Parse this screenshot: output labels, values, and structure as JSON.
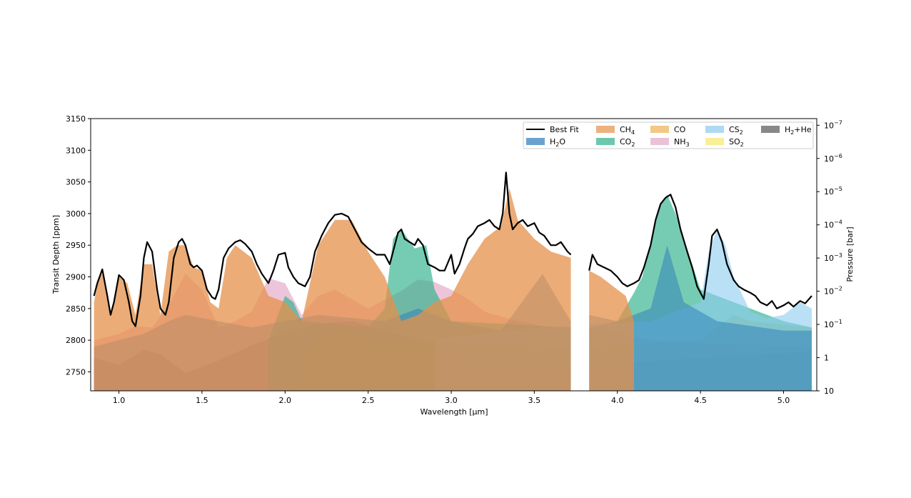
{
  "chart_data": {
    "type": "area",
    "xlabel": "Wavelength [μm]",
    "ylabel": "Transit Depth [ppm]",
    "y2label": "Pressure [bar]",
    "xlim": [
      0.83,
      5.2
    ],
    "ylim": [
      2720,
      3150
    ],
    "y2lim_log10": [
      -7.2,
      1
    ],
    "xticks": [
      1.0,
      1.5,
      2.0,
      2.5,
      3.0,
      3.5,
      4.0,
      4.5,
      5.0
    ],
    "xtick_labels": [
      "1.0",
      "1.5",
      "2.0",
      "2.5",
      "3.0",
      "3.5",
      "4.0",
      "4.5",
      "5.0"
    ],
    "yticks": [
      2750,
      2800,
      2850,
      2900,
      2950,
      3000,
      3050,
      3100,
      3150
    ],
    "ytick_labels": [
      "2750",
      "2800",
      "2850",
      "2900",
      "2950",
      "3000",
      "3050",
      "3100",
      "3150"
    ],
    "y2ticks_log10": [
      -7,
      -6,
      -5,
      -4,
      -3,
      -2,
      -1,
      0,
      1
    ],
    "y2tick_labels": [
      {
        "base": "10",
        "exp": "−7"
      },
      {
        "base": "10",
        "exp": "−6"
      },
      {
        "base": "10",
        "exp": "−5"
      },
      {
        "base": "10",
        "exp": "−4"
      },
      {
        "base": "10",
        "exp": "−3"
      },
      {
        "base": "10",
        "exp": "−2"
      },
      {
        "base": "10",
        "exp": "−1"
      },
      {
        "base": "1",
        "exp": ""
      },
      {
        "base": "10",
        "exp": ""
      }
    ],
    "gap": [
      3.72,
      3.83
    ],
    "legend_position": "top-right",
    "grid": false,
    "legend": [
      {
        "label": "Best Fit",
        "sub": "",
        "post": "",
        "color": "#000000",
        "kind": "line"
      },
      {
        "label": "H",
        "sub": "2",
        "post": "O",
        "color": "#2b7bba",
        "kind": "patch"
      },
      {
        "label": "CH",
        "sub": "4",
        "post": "",
        "color": "#e6904a",
        "kind": "patch"
      },
      {
        "label": "CO",
        "sub": "2",
        "post": "",
        "color": "#2db08a",
        "kind": "patch"
      },
      {
        "label": "CO",
        "sub": "",
        "post": "",
        "color": "#eeb050",
        "kind": "patch"
      },
      {
        "label": "NH",
        "sub": "3",
        "post": "",
        "color": "#e3a6c6",
        "kind": "patch"
      },
      {
        "label": "CS",
        "sub": "2",
        "post": "",
        "color": "#8ccbf0",
        "kind": "patch"
      },
      {
        "label": "SO",
        "sub": "2",
        "post": "",
        "color": "#f7e86a",
        "kind": "patch"
      },
      {
        "label": "H",
        "sub": "2",
        "post": "+He",
        "color": "#555555",
        "kind": "patch"
      }
    ],
    "series": [
      {
        "name": "H₂+He",
        "color": "#666666",
        "opacity": 0.85,
        "x": [
          0.85,
          1.0,
          1.15,
          1.25,
          1.4,
          1.6,
          1.8,
          2.0,
          2.2,
          2.4,
          2.6,
          2.8,
          3.0,
          3.2,
          3.4,
          3.6,
          3.72,
          3.83,
          4.2,
          4.6,
          5.0,
          5.17
        ],
        "y": [
          2772,
          2761,
          2785,
          2778,
          2748,
          2768,
          2792,
          2812,
          2826,
          2830,
          2815,
          2800,
          2778,
          2762,
          2755,
          2756,
          2759,
          2762,
          2767,
          2773,
          2779,
          2783
        ]
      },
      {
        "name": "NH₃",
        "color": "#e3a6c6",
        "opacity": 0.65,
        "x": [
          0.85,
          1.0,
          1.1,
          1.2,
          1.3,
          1.4,
          1.5,
          1.6,
          1.7,
          1.8,
          1.9,
          2.0,
          2.1,
          2.2,
          2.3,
          2.5,
          2.7,
          2.8,
          2.9,
          3.0,
          3.1,
          3.2,
          3.4,
          3.6,
          3.72,
          3.83,
          4.0,
          4.1,
          4.2,
          4.5,
          5.17
        ],
        "y": [
          2800,
          2810,
          2822,
          2820,
          2855,
          2905,
          2880,
          2820,
          2830,
          2845,
          2898,
          2890,
          2840,
          2870,
          2880,
          2850,
          2878,
          2896,
          2892,
          2880,
          2865,
          2845,
          2830,
          2820,
          2818,
          2818,
          2815,
          2805,
          2800,
          2795,
          2790
        ]
      },
      {
        "name": "CO",
        "color": "#eeb050",
        "opacity": 0.5,
        "x": [
          2.1,
          2.2,
          2.3,
          2.4,
          2.5,
          3.72,
          3.83,
          4.5,
          4.6,
          4.7,
          4.8,
          5.17
        ],
        "y": [
          2775,
          2800,
          2820,
          2815,
          2800,
          2790,
          2790,
          2800,
          2820,
          2840,
          2830,
          2820
        ]
      },
      {
        "name": "CO₂",
        "color": "#2db08a",
        "opacity": 0.65,
        "x": [
          1.9,
          2.0,
          2.05,
          2.1,
          2.5,
          2.6,
          2.65,
          2.7,
          2.78,
          2.85,
          2.9,
          3.0,
          3.72,
          3.83,
          4.0,
          4.1,
          4.15,
          4.2,
          4.25,
          4.3,
          4.35,
          4.4,
          4.5,
          4.6,
          4.7,
          4.8,
          5.0,
          5.17
        ],
        "y": [
          2800,
          2870,
          2860,
          2830,
          2820,
          2850,
          2960,
          2975,
          2945,
          2950,
          2880,
          2830,
          2820,
          2820,
          2830,
          2875,
          2900,
          2950,
          3010,
          3030,
          3000,
          2960,
          2880,
          2870,
          2860,
          2850,
          2830,
          2820
        ]
      },
      {
        "name": "CS₂",
        "color": "#8ccbf0",
        "opacity": 0.6,
        "x": [
          2.9,
          3.0,
          3.2,
          3.5,
          3.72,
          3.83,
          4.2,
          4.5,
          4.55,
          4.6,
          4.65,
          4.7,
          4.8,
          4.9,
          5.0,
          5.1,
          5.17
        ],
        "y": [
          2800,
          2805,
          2810,
          2820,
          2822,
          2825,
          2830,
          2860,
          2940,
          2975,
          2950,
          2900,
          2845,
          2835,
          2840,
          2860,
          2850
        ]
      },
      {
        "name": "H₂O",
        "color": "#2b7bba",
        "opacity": 0.5,
        "x": [
          0.85,
          1.0,
          1.15,
          1.3,
          1.4,
          1.6,
          1.8,
          2.0,
          2.2,
          2.4,
          2.6,
          2.8,
          3.0,
          3.3,
          3.55,
          3.65,
          3.72,
          3.83,
          4.0,
          4.2,
          4.3,
          4.4,
          4.6,
          5.0,
          5.17
        ],
        "y": [
          2790,
          2800,
          2810,
          2830,
          2840,
          2830,
          2820,
          2830,
          2840,
          2835,
          2830,
          2850,
          2830,
          2815,
          2905,
          2860,
          2830,
          2840,
          2830,
          2850,
          2950,
          2860,
          2830,
          2815,
          2815
        ]
      },
      {
        "name": "CH₄",
        "color": "#e6904a",
        "opacity": 0.75,
        "x": [
          0.85,
          0.88,
          0.9,
          0.95,
          1.0,
          1.05,
          1.1,
          1.15,
          1.2,
          1.25,
          1.3,
          1.35,
          1.4,
          1.45,
          1.5,
          1.55,
          1.6,
          1.65,
          1.7,
          1.8,
          1.9,
          2.0,
          2.1,
          2.2,
          2.3,
          2.4,
          2.5,
          2.6,
          2.7,
          2.8,
          2.9,
          3.0,
          3.1,
          3.2,
          3.3,
          3.35,
          3.4,
          3.5,
          3.6,
          3.72,
          3.83,
          3.9,
          4.0,
          4.05,
          4.1
        ],
        "y": [
          2860,
          2900,
          2905,
          2840,
          2900,
          2890,
          2840,
          2920,
          2920,
          2840,
          2940,
          2950,
          2950,
          2915,
          2910,
          2860,
          2850,
          2930,
          2950,
          2930,
          2870,
          2860,
          2830,
          2950,
          2990,
          2990,
          2940,
          2900,
          2830,
          2840,
          2860,
          2870,
          2920,
          2960,
          2980,
          3040,
          2990,
          2960,
          2940,
          2930,
          2910,
          2900,
          2880,
          2870,
          2830
        ]
      }
    ],
    "best_fit": {
      "name": "Best Fit",
      "color": "#000000",
      "segments": [
        {
          "x": [
            0.85,
            0.87,
            0.9,
            0.93,
            0.95,
            0.97,
            1.0,
            1.03,
            1.06,
            1.08,
            1.1,
            1.13,
            1.15,
            1.17,
            1.2,
            1.23,
            1.25,
            1.28,
            1.3,
            1.33,
            1.36,
            1.38,
            1.4,
            1.43,
            1.45,
            1.47,
            1.5,
            1.53,
            1.56,
            1.58,
            1.6,
            1.63,
            1.66,
            1.7,
            1.73,
            1.76,
            1.8,
            1.83,
            1.86,
            1.9,
            1.93,
            1.96,
            2.0,
            2.02,
            2.05,
            2.08,
            2.12,
            2.15,
            2.18,
            2.22,
            2.26,
            2.3,
            2.34,
            2.38,
            2.42,
            2.46,
            2.5,
            2.55,
            2.6,
            2.63,
            2.65,
            2.68,
            2.7,
            2.72,
            2.75,
            2.78,
            2.8,
            2.83,
            2.86,
            2.9,
            2.93,
            2.96,
            3.0,
            3.02,
            3.05,
            3.08,
            3.1,
            3.13,
            3.16,
            3.2,
            3.23,
            3.26,
            3.29,
            3.31,
            3.33,
            3.35,
            3.37,
            3.4,
            3.43,
            3.46,
            3.5,
            3.53,
            3.56,
            3.6,
            3.63,
            3.66,
            3.7,
            3.72
          ],
          "y": [
            2870,
            2890,
            2912,
            2870,
            2840,
            2860,
            2903,
            2895,
            2860,
            2830,
            2822,
            2870,
            2930,
            2955,
            2940,
            2880,
            2850,
            2840,
            2860,
            2930,
            2955,
            2960,
            2950,
            2920,
            2915,
            2918,
            2910,
            2880,
            2868,
            2865,
            2880,
            2930,
            2945,
            2955,
            2958,
            2952,
            2940,
            2920,
            2905,
            2890,
            2910,
            2935,
            2938,
            2915,
            2900,
            2890,
            2885,
            2900,
            2940,
            2965,
            2985,
            2998,
            3000,
            2995,
            2975,
            2955,
            2945,
            2935,
            2935,
            2920,
            2940,
            2970,
            2975,
            2960,
            2955,
            2950,
            2960,
            2950,
            2920,
            2915,
            2910,
            2910,
            2935,
            2905,
            2920,
            2945,
            2960,
            2968,
            2980,
            2985,
            2990,
            2980,
            2975,
            3000,
            3065,
            3000,
            2975,
            2985,
            2990,
            2980,
            2985,
            2970,
            2965,
            2950,
            2950,
            2955,
            2940,
            2935
          ]
        },
        {
          "x": [
            3.83,
            3.85,
            3.88,
            3.92,
            3.96,
            4.0,
            4.03,
            4.06,
            4.1,
            4.13,
            4.16,
            4.2,
            4.23,
            4.26,
            4.29,
            4.32,
            4.35,
            4.38,
            4.42,
            4.45,
            4.48,
            4.52,
            4.55,
            4.57,
            4.6,
            4.63,
            4.66,
            4.7,
            4.73,
            4.76,
            4.8,
            4.83,
            4.86,
            4.9,
            4.93,
            4.96,
            5.0,
            5.03,
            5.06,
            5.1,
            5.13,
            5.17
          ],
          "y": [
            2910,
            2935,
            2920,
            2915,
            2910,
            2900,
            2890,
            2885,
            2890,
            2895,
            2915,
            2950,
            2990,
            3015,
            3025,
            3030,
            3010,
            2975,
            2940,
            2915,
            2885,
            2865,
            2920,
            2965,
            2975,
            2955,
            2920,
            2895,
            2885,
            2880,
            2875,
            2870,
            2860,
            2855,
            2862,
            2850,
            2855,
            2860,
            2853,
            2862,
            2858,
            2870
          ]
        }
      ]
    }
  }
}
